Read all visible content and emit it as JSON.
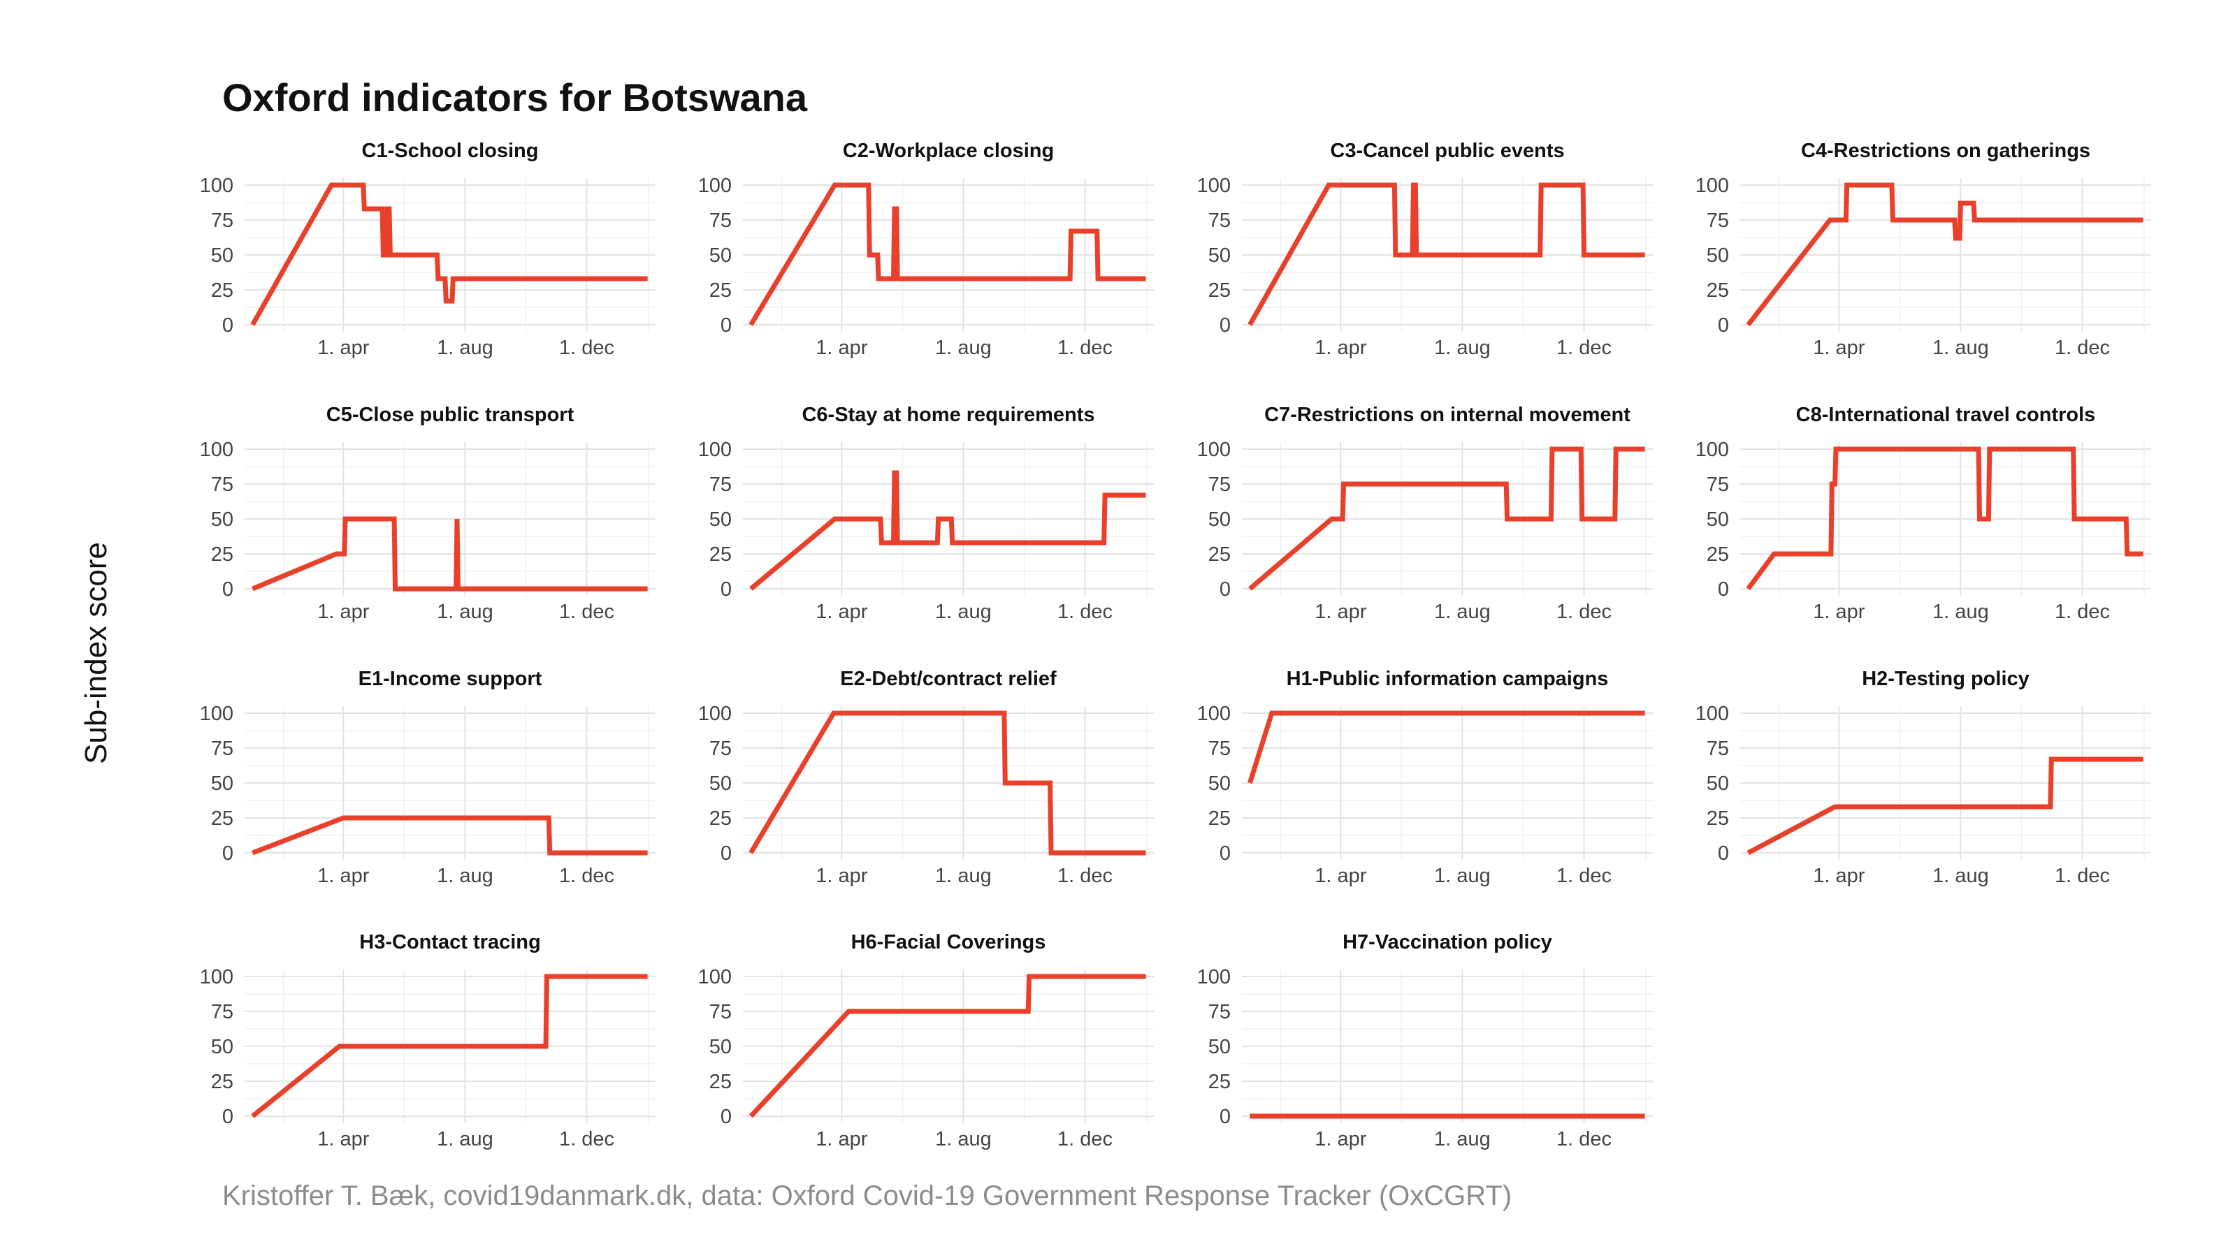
{
  "title": "Oxford indicators for Botswana",
  "y_axis_label": "Sub-index score",
  "caption": "Kristoffer T. Bæk, covid19danmark.dk, data: Oxford Covid-19 Government Response Tracker (OxCGRT)",
  "colors": {
    "line": "#e8402a",
    "grid": "#e3e3e3",
    "text": "#111111",
    "caption": "#8c8c8c"
  },
  "chart_data": [
    {
      "type": "line",
      "title": "C1-School closing",
      "x_ticks": [
        "1. apr",
        "1. aug",
        "1. dec"
      ],
      "y_ticks": [
        "100",
        "75",
        "50",
        "25",
        "0"
      ],
      "ylim": [
        0,
        100
      ],
      "xlim": [
        "2020-01-01",
        "2021-01-31"
      ],
      "grid": true,
      "points": [
        [
          "2020-01-01",
          0
        ],
        [
          "2020-03-20",
          100
        ],
        [
          "2020-04-21",
          100
        ],
        [
          "2020-04-22",
          83
        ],
        [
          "2020-05-10",
          83
        ],
        [
          "2020-05-11",
          50
        ],
        [
          "2020-05-14",
          50
        ],
        [
          "2020-05-15",
          83
        ],
        [
          "2020-05-17",
          83
        ],
        [
          "2020-05-18",
          50
        ],
        [
          "2020-07-04",
          50
        ],
        [
          "2020-07-05",
          33
        ],
        [
          "2020-07-12",
          33
        ],
        [
          "2020-07-13",
          17
        ],
        [
          "2020-07-19",
          17
        ],
        [
          "2020-07-20",
          33
        ],
        [
          "2021-01-31",
          33
        ]
      ]
    },
    {
      "type": "line",
      "title": "C2-Workplace closing",
      "x_ticks": [
        "1. apr",
        "1. aug",
        "1. dec"
      ],
      "y_ticks": [
        "100",
        "75",
        "50",
        "25",
        "0"
      ],
      "ylim": [
        0,
        100
      ],
      "xlim": [
        "2020-01-01",
        "2021-01-31"
      ],
      "grid": true,
      "points": [
        [
          "2020-01-01",
          0
        ],
        [
          "2020-03-25",
          100
        ],
        [
          "2020-04-28",
          100
        ],
        [
          "2020-04-29",
          50
        ],
        [
          "2020-05-07",
          50
        ],
        [
          "2020-05-08",
          33
        ],
        [
          "2020-05-23",
          33
        ],
        [
          "2020-05-24",
          83
        ],
        [
          "2020-05-26",
          83
        ],
        [
          "2020-05-27",
          33
        ],
        [
          "2020-11-16",
          33
        ],
        [
          "2020-11-17",
          67
        ],
        [
          "2020-12-13",
          67
        ],
        [
          "2020-12-14",
          33
        ],
        [
          "2021-01-31",
          33
        ]
      ]
    },
    {
      "type": "line",
      "title": "C3-Cancel public events",
      "x_ticks": [
        "1. apr",
        "1. aug",
        "1. dec"
      ],
      "y_ticks": [
        "100",
        "75",
        "50",
        "25",
        "0"
      ],
      "ylim": [
        0,
        100
      ],
      "xlim": [
        "2020-01-01",
        "2021-01-31"
      ],
      "grid": true,
      "points": [
        [
          "2020-01-01",
          0
        ],
        [
          "2020-03-20",
          100
        ],
        [
          "2020-05-25",
          100
        ],
        [
          "2020-05-26",
          50
        ],
        [
          "2020-06-12",
          50
        ],
        [
          "2020-06-13",
          100
        ],
        [
          "2020-06-15",
          100
        ],
        [
          "2020-06-16",
          50
        ],
        [
          "2020-10-18",
          50
        ],
        [
          "2020-10-19",
          100
        ],
        [
          "2020-11-30",
          100
        ],
        [
          "2020-12-01",
          50
        ],
        [
          "2021-01-31",
          50
        ]
      ]
    },
    {
      "type": "line",
      "title": "C4-Restrictions on gatherings",
      "x_ticks": [
        "1. apr",
        "1. aug",
        "1. dec"
      ],
      "y_ticks": [
        "100",
        "75",
        "50",
        "25",
        "0"
      ],
      "ylim": [
        0,
        100
      ],
      "xlim": [
        "2020-01-01",
        "2021-01-31"
      ],
      "grid": true,
      "points": [
        [
          "2020-01-01",
          0
        ],
        [
          "2020-03-23",
          75
        ],
        [
          "2020-04-08",
          75
        ],
        [
          "2020-04-09",
          100
        ],
        [
          "2020-05-24",
          100
        ],
        [
          "2020-05-25",
          75
        ],
        [
          "2020-07-26",
          75
        ],
        [
          "2020-07-27",
          62
        ],
        [
          "2020-07-31",
          62
        ],
        [
          "2020-08-01",
          87
        ],
        [
          "2020-08-14",
          87
        ],
        [
          "2020-08-15",
          75
        ],
        [
          "2021-01-31",
          75
        ]
      ]
    },
    {
      "type": "line",
      "title": "C5-Close public transport",
      "x_ticks": [
        "1. apr",
        "1. aug",
        "1. dec"
      ],
      "y_ticks": [
        "100",
        "75",
        "50",
        "25",
        "0"
      ],
      "ylim": [
        0,
        100
      ],
      "xlim": [
        "2020-01-01",
        "2021-01-31"
      ],
      "grid": true,
      "points": [
        [
          "2020-01-01",
          0
        ],
        [
          "2020-03-25",
          25
        ],
        [
          "2020-04-02",
          25
        ],
        [
          "2020-04-03",
          50
        ],
        [
          "2020-05-22",
          50
        ],
        [
          "2020-05-23",
          0
        ],
        [
          "2020-07-23",
          0
        ],
        [
          "2020-07-24",
          50
        ],
        [
          "2020-07-25",
          0
        ],
        [
          "2021-01-31",
          0
        ]
      ]
    },
    {
      "type": "line",
      "title": "C6-Stay at home requirements",
      "x_ticks": [
        "1. apr",
        "1. aug",
        "1. dec"
      ],
      "y_ticks": [
        "100",
        "75",
        "50",
        "25",
        "0"
      ],
      "ylim": [
        0,
        100
      ],
      "xlim": [
        "2020-01-01",
        "2021-01-31"
      ],
      "grid": true,
      "points": [
        [
          "2020-01-01",
          0
        ],
        [
          "2020-03-25",
          50
        ],
        [
          "2020-05-10",
          50
        ],
        [
          "2020-05-11",
          33
        ],
        [
          "2020-05-23",
          33
        ],
        [
          "2020-05-24",
          83
        ],
        [
          "2020-05-26",
          83
        ],
        [
          "2020-05-27",
          33
        ],
        [
          "2020-07-06",
          33
        ],
        [
          "2020-07-07",
          50
        ],
        [
          "2020-07-20",
          50
        ],
        [
          "2020-07-21",
          33
        ],
        [
          "2020-12-20",
          33
        ],
        [
          "2020-12-21",
          67
        ],
        [
          "2021-01-31",
          67
        ]
      ]
    },
    {
      "type": "line",
      "title": "C7-Restrictions on internal movement",
      "x_ticks": [
        "1. apr",
        "1. aug",
        "1. dec"
      ],
      "y_ticks": [
        "100",
        "75",
        "50",
        "25",
        "0"
      ],
      "ylim": [
        0,
        100
      ],
      "xlim": [
        "2020-01-01",
        "2021-01-31"
      ],
      "grid": true,
      "points": [
        [
          "2020-01-01",
          0
        ],
        [
          "2020-03-23",
          50
        ],
        [
          "2020-04-03",
          50
        ],
        [
          "2020-04-04",
          75
        ],
        [
          "2020-09-14",
          75
        ],
        [
          "2020-09-15",
          50
        ],
        [
          "2020-10-29",
          50
        ],
        [
          "2020-10-30",
          100
        ],
        [
          "2020-11-28",
          100
        ],
        [
          "2020-11-29",
          50
        ],
        [
          "2021-01-01",
          50
        ],
        [
          "2021-01-02",
          100
        ],
        [
          "2021-01-31",
          100
        ]
      ]
    },
    {
      "type": "line",
      "title": "C8-International travel controls",
      "x_ticks": [
        "1. apr",
        "1. aug",
        "1. dec"
      ],
      "y_ticks": [
        "100",
        "75",
        "50",
        "25",
        "0"
      ],
      "ylim": [
        0,
        100
      ],
      "xlim": [
        "2020-01-01",
        "2021-01-31"
      ],
      "grid": true,
      "points": [
        [
          "2020-01-01",
          0
        ],
        [
          "2020-01-27",
          25
        ],
        [
          "2020-03-24",
          25
        ],
        [
          "2020-03-25",
          75
        ],
        [
          "2020-03-28",
          75
        ],
        [
          "2020-03-29",
          100
        ],
        [
          "2020-08-19",
          100
        ],
        [
          "2020-08-20",
          50
        ],
        [
          "2020-08-29",
          50
        ],
        [
          "2020-08-30",
          100
        ],
        [
          "2020-11-22",
          100
        ],
        [
          "2020-11-23",
          50
        ],
        [
          "2021-01-14",
          50
        ],
        [
          "2021-01-15",
          25
        ],
        [
          "2021-01-31",
          25
        ]
      ]
    },
    {
      "type": "line",
      "title": "E1-Income support",
      "x_ticks": [
        "1. apr",
        "1. aug",
        "1. dec"
      ],
      "y_ticks": [
        "100",
        "75",
        "50",
        "25",
        "0"
      ],
      "ylim": [
        0,
        100
      ],
      "xlim": [
        "2020-01-01",
        "2021-01-31"
      ],
      "grid": true,
      "points": [
        [
          "2020-01-01",
          0
        ],
        [
          "2020-04-01",
          25
        ],
        [
          "2020-10-24",
          25
        ],
        [
          "2020-10-25",
          0
        ],
        [
          "2021-01-31",
          0
        ]
      ]
    },
    {
      "type": "line",
      "title": "E2-Debt/contract relief",
      "x_ticks": [
        "1. apr",
        "1. aug",
        "1. dec"
      ],
      "y_ticks": [
        "100",
        "75",
        "50",
        "25",
        "0"
      ],
      "ylim": [
        0,
        100
      ],
      "xlim": [
        "2020-01-01",
        "2021-01-31"
      ],
      "grid": true,
      "points": [
        [
          "2020-01-01",
          0
        ],
        [
          "2020-03-24",
          100
        ],
        [
          "2020-09-11",
          100
        ],
        [
          "2020-09-12",
          50
        ],
        [
          "2020-10-27",
          50
        ],
        [
          "2020-10-28",
          0
        ],
        [
          "2021-01-31",
          0
        ]
      ]
    },
    {
      "type": "line",
      "title": "H1-Public information campaigns",
      "x_ticks": [
        "1. apr",
        "1. aug",
        "1. dec"
      ],
      "y_ticks": [
        "100",
        "75",
        "50",
        "25",
        "0"
      ],
      "ylim": [
        0,
        100
      ],
      "xlim": [
        "2020-01-01",
        "2021-01-31"
      ],
      "grid": true,
      "points": [
        [
          "2020-01-01",
          50
        ],
        [
          "2020-01-23",
          100
        ],
        [
          "2021-01-31",
          100
        ]
      ]
    },
    {
      "type": "line",
      "title": "H2-Testing policy",
      "x_ticks": [
        "1. apr",
        "1. aug",
        "1. dec"
      ],
      "y_ticks": [
        "100",
        "75",
        "50",
        "25",
        "0"
      ],
      "ylim": [
        0,
        100
      ],
      "xlim": [
        "2020-01-01",
        "2021-01-31"
      ],
      "grid": true,
      "points": [
        [
          "2020-01-01",
          0
        ],
        [
          "2020-03-28",
          33
        ],
        [
          "2020-10-30",
          33
        ],
        [
          "2020-10-31",
          67
        ],
        [
          "2021-01-31",
          67
        ]
      ]
    },
    {
      "type": "line",
      "title": "H3-Contact tracing",
      "x_ticks": [
        "1. apr",
        "1. aug",
        "1. dec"
      ],
      "y_ticks": [
        "100",
        "75",
        "50",
        "25",
        "0"
      ],
      "ylim": [
        0,
        100
      ],
      "xlim": [
        "2020-01-01",
        "2021-01-31"
      ],
      "grid": true,
      "points": [
        [
          "2020-01-01",
          0
        ],
        [
          "2020-03-28",
          50
        ],
        [
          "2020-10-21",
          50
        ],
        [
          "2020-10-22",
          100
        ],
        [
          "2021-01-31",
          100
        ]
      ]
    },
    {
      "type": "line",
      "title": "H6-Facial Coverings",
      "x_ticks": [
        "1. apr",
        "1. aug",
        "1. dec"
      ],
      "y_ticks": [
        "100",
        "75",
        "50",
        "25",
        "0"
      ],
      "ylim": [
        0,
        100
      ],
      "xlim": [
        "2020-01-01",
        "2021-01-31"
      ],
      "grid": true,
      "points": [
        [
          "2020-01-01",
          0
        ],
        [
          "2020-04-08",
          75
        ],
        [
          "2020-10-05",
          75
        ],
        [
          "2020-10-06",
          100
        ],
        [
          "2021-01-31",
          100
        ]
      ]
    },
    {
      "type": "line",
      "title": "H7-Vaccination policy",
      "x_ticks": [
        "1. apr",
        "1. aug",
        "1. dec"
      ],
      "y_ticks": [
        "100",
        "75",
        "50",
        "25",
        "0"
      ],
      "ylim": [
        0,
        100
      ],
      "xlim": [
        "2020-01-01",
        "2021-01-31"
      ],
      "grid": true,
      "points": [
        [
          "2020-01-01",
          0
        ],
        [
          "2021-01-31",
          0
        ]
      ]
    }
  ]
}
